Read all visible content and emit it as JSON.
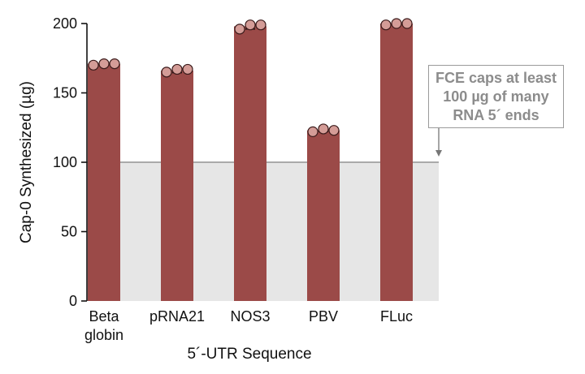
{
  "chart_data": {
    "type": "bar",
    "categories": [
      [
        "Beta",
        "globin"
      ],
      [
        "pRNA21"
      ],
      [
        "NOS3"
      ],
      [
        "PBV"
      ],
      [
        "FLuc"
      ]
    ],
    "values": [
      171,
      166,
      198,
      123,
      200
    ],
    "replicates": [
      [
        170,
        171,
        171
      ],
      [
        165,
        167,
        167
      ],
      [
        196,
        199,
        199
      ],
      [
        122,
        124,
        123
      ],
      [
        199,
        200,
        200
      ]
    ],
    "error": [
      1,
      1.5,
      2,
      1,
      0.5
    ],
    "xlabel": "5´-UTR Sequence",
    "ylabel": "Cap-0 Synthesized (µg)",
    "ylim": [
      0,
      200
    ],
    "yticks": [
      0,
      50,
      100,
      150,
      200
    ],
    "threshold": 100,
    "annotation": [
      "FCE caps at least",
      "100 µg of many",
      "RNA 5´ ends"
    ],
    "colors": {
      "bar": "#9b4a48",
      "point_fill": "#d49c97",
      "point_stroke": "#3a1a1a",
      "threshold_line": "#aaaaaa",
      "threshold_band": "#e6e6e6",
      "annotation_text": "#8c8c8c"
    }
  }
}
